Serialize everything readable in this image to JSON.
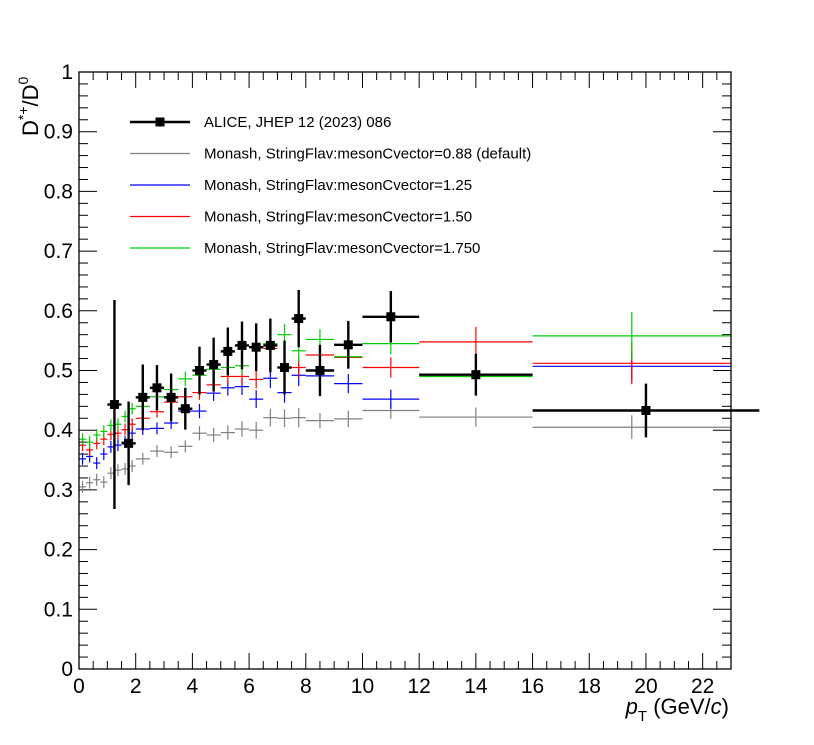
{
  "chart_data": {
    "type": "scatter",
    "title": "",
    "xlabel": {
      "italic": "p",
      "sub": "T",
      "unit_pre": " (GeV/",
      "unit_italic": "c",
      "unit_post": ")"
    },
    "ylabel": {
      "base": "D",
      "sup1": "*+",
      "mid": "/D",
      "sup2": "0"
    },
    "xlim": [
      0,
      23
    ],
    "ylim": [
      0,
      1
    ],
    "xticks": [
      0,
      2,
      4,
      6,
      8,
      10,
      12,
      14,
      16,
      18,
      20,
      22
    ],
    "xtick_labels": [
      "0",
      "2",
      "4",
      "6",
      "8",
      "10",
      "12",
      "14",
      "16",
      "18",
      "20",
      "22"
    ],
    "yticks": [
      0,
      0.1,
      0.2,
      0.3,
      0.4,
      0.5,
      0.6,
      0.7,
      0.8,
      0.9,
      1
    ],
    "ytick_labels": [
      "0",
      "0.1",
      "0.2",
      "0.3",
      "0.4",
      "0.5",
      "0.6",
      "0.7",
      "0.8",
      "0.9",
      "1"
    ],
    "legend_position": "top-left",
    "legend": [
      {
        "label": "ALICE, JHEP 12 (2023) 086",
        "color": "#000000",
        "style": "marker"
      },
      {
        "label": "Monash, StringFlav:mesonCvector=0.88 (default)",
        "color": "#808080",
        "style": "line"
      },
      {
        "label": "Monash, StringFlav:mesonCvector=1.25",
        "color": "#0000ff",
        "style": "line"
      },
      {
        "label": "Monash, StringFlav:mesonCvector=1.50",
        "color": "#ff0000",
        "style": "line"
      },
      {
        "label": "Monash, StringFlav:mesonCvector=1.750",
        "color": "#00cc00",
        "style": "line"
      }
    ],
    "series": [
      {
        "name": "ALICE, JHEP 12 (2023) 086",
        "color": "#000000",
        "kind": "data",
        "points": [
          {
            "x": 1.25,
            "xerr": 0.25,
            "y": 0.443,
            "yerr": 0.175
          },
          {
            "x": 1.75,
            "xerr": 0.25,
            "y": 0.378,
            "yerr": 0.07
          },
          {
            "x": 2.25,
            "xerr": 0.25,
            "y": 0.455,
            "yerr": 0.055
          },
          {
            "x": 2.75,
            "xerr": 0.25,
            "y": 0.471,
            "yerr": 0.038
          },
          {
            "x": 3.25,
            "xerr": 0.25,
            "y": 0.455,
            "yerr": 0.04
          },
          {
            "x": 3.75,
            "xerr": 0.25,
            "y": 0.436,
            "yerr": 0.035
          },
          {
            "x": 4.25,
            "xerr": 0.25,
            "y": 0.5,
            "yerr": 0.04
          },
          {
            "x": 4.75,
            "xerr": 0.25,
            "y": 0.51,
            "yerr": 0.045
          },
          {
            "x": 5.25,
            "xerr": 0.25,
            "y": 0.532,
            "yerr": 0.04
          },
          {
            "x": 5.75,
            "xerr": 0.25,
            "y": 0.542,
            "yerr": 0.04
          },
          {
            "x": 6.25,
            "xerr": 0.25,
            "y": 0.539,
            "yerr": 0.04
          },
          {
            "x": 6.75,
            "xerr": 0.25,
            "y": 0.542,
            "yerr": 0.045
          },
          {
            "x": 7.25,
            "xerr": 0.25,
            "y": 0.505,
            "yerr": 0.045
          },
          {
            "x": 7.75,
            "xerr": 0.25,
            "y": 0.587,
            "yerr": 0.048
          },
          {
            "x": 8.5,
            "xerr": 0.5,
            "y": 0.5,
            "yerr": 0.043
          },
          {
            "x": 9.5,
            "xerr": 0.5,
            "y": 0.543,
            "yerr": 0.04
          },
          {
            "x": 11,
            "xerr": 1,
            "y": 0.59,
            "yerr": 0.043
          },
          {
            "x": 14,
            "xerr": 2,
            "y": 0.493,
            "yerr": 0.035
          },
          {
            "x": 20,
            "xerr": 4,
            "y": 0.433,
            "yerr": 0.045
          }
        ]
      },
      {
        "name": "Monash, StringFlav:mesonCvector=0.88 (default)",
        "color": "#808080",
        "kind": "mc",
        "points": [
          {
            "x": 0.125,
            "xerr": 0.125,
            "y": 0.305,
            "yerr": 0.01
          },
          {
            "x": 0.375,
            "xerr": 0.125,
            "y": 0.312,
            "yerr": 0.01
          },
          {
            "x": 0.625,
            "xerr": 0.125,
            "y": 0.317,
            "yerr": 0.01
          },
          {
            "x": 0.875,
            "xerr": 0.125,
            "y": 0.313,
            "yerr": 0.01
          },
          {
            "x": 1.125,
            "xerr": 0.125,
            "y": 0.328,
            "yerr": 0.01
          },
          {
            "x": 1.375,
            "xerr": 0.125,
            "y": 0.333,
            "yerr": 0.01
          },
          {
            "x": 1.625,
            "xerr": 0.125,
            "y": 0.335,
            "yerr": 0.01
          },
          {
            "x": 1.875,
            "xerr": 0.125,
            "y": 0.34,
            "yerr": 0.01
          },
          {
            "x": 2.25,
            "xerr": 0.25,
            "y": 0.352,
            "yerr": 0.01
          },
          {
            "x": 2.75,
            "xerr": 0.25,
            "y": 0.365,
            "yerr": 0.01
          },
          {
            "x": 3.25,
            "xerr": 0.25,
            "y": 0.363,
            "yerr": 0.01
          },
          {
            "x": 3.75,
            "xerr": 0.25,
            "y": 0.373,
            "yerr": 0.01
          },
          {
            "x": 4.25,
            "xerr": 0.25,
            "y": 0.395,
            "yerr": 0.012
          },
          {
            "x": 4.75,
            "xerr": 0.25,
            "y": 0.392,
            "yerr": 0.012
          },
          {
            "x": 5.25,
            "xerr": 0.25,
            "y": 0.396,
            "yerr": 0.012
          },
          {
            "x": 5.75,
            "xerr": 0.25,
            "y": 0.402,
            "yerr": 0.013
          },
          {
            "x": 6.25,
            "xerr": 0.25,
            "y": 0.4,
            "yerr": 0.014
          },
          {
            "x": 6.75,
            "xerr": 0.25,
            "y": 0.421,
            "yerr": 0.015
          },
          {
            "x": 7.25,
            "xerr": 0.25,
            "y": 0.42,
            "yerr": 0.015
          },
          {
            "x": 7.75,
            "xerr": 0.25,
            "y": 0.421,
            "yerr": 0.016
          },
          {
            "x": 8.5,
            "xerr": 0.5,
            "y": 0.416,
            "yerr": 0.013
          },
          {
            "x": 9.5,
            "xerr": 0.5,
            "y": 0.419,
            "yerr": 0.014
          },
          {
            "x": 11,
            "xerr": 1,
            "y": 0.433,
            "yerr": 0.014
          },
          {
            "x": 14,
            "xerr": 2,
            "y": 0.422,
            "yerr": 0.016
          },
          {
            "x": 19.5,
            "xerr": 3.5,
            "y": 0.405,
            "yerr": 0.02
          }
        ]
      },
      {
        "name": "Monash, StringFlav:mesonCvector=1.25",
        "color": "#0000ff",
        "kind": "mc",
        "points": [
          {
            "x": 0.125,
            "xerr": 0.125,
            "y": 0.352,
            "yerr": 0.01
          },
          {
            "x": 0.375,
            "xerr": 0.125,
            "y": 0.356,
            "yerr": 0.01
          },
          {
            "x": 0.625,
            "xerr": 0.125,
            "y": 0.345,
            "yerr": 0.01
          },
          {
            "x": 0.875,
            "xerr": 0.125,
            "y": 0.36,
            "yerr": 0.01
          },
          {
            "x": 1.125,
            "xerr": 0.125,
            "y": 0.372,
            "yerr": 0.01
          },
          {
            "x": 1.375,
            "xerr": 0.125,
            "y": 0.375,
            "yerr": 0.01
          },
          {
            "x": 1.625,
            "xerr": 0.125,
            "y": 0.38,
            "yerr": 0.01
          },
          {
            "x": 1.875,
            "xerr": 0.125,
            "y": 0.395,
            "yerr": 0.01
          },
          {
            "x": 2.25,
            "xerr": 0.25,
            "y": 0.402,
            "yerr": 0.01
          },
          {
            "x": 2.75,
            "xerr": 0.25,
            "y": 0.403,
            "yerr": 0.01
          },
          {
            "x": 3.25,
            "xerr": 0.25,
            "y": 0.412,
            "yerr": 0.01
          },
          {
            "x": 3.75,
            "xerr": 0.25,
            "y": 0.432,
            "yerr": 0.012
          },
          {
            "x": 4.25,
            "xerr": 0.25,
            "y": 0.432,
            "yerr": 0.012
          },
          {
            "x": 4.75,
            "xerr": 0.25,
            "y": 0.462,
            "yerr": 0.013
          },
          {
            "x": 5.25,
            "xerr": 0.25,
            "y": 0.471,
            "yerr": 0.013
          },
          {
            "x": 5.75,
            "xerr": 0.25,
            "y": 0.473,
            "yerr": 0.014
          },
          {
            "x": 6.25,
            "xerr": 0.25,
            "y": 0.452,
            "yerr": 0.015
          },
          {
            "x": 6.75,
            "xerr": 0.25,
            "y": 0.487,
            "yerr": 0.016
          },
          {
            "x": 7.25,
            "xerr": 0.25,
            "y": 0.463,
            "yerr": 0.017
          },
          {
            "x": 7.75,
            "xerr": 0.25,
            "y": 0.492,
            "yerr": 0.018
          },
          {
            "x": 8.5,
            "xerr": 0.5,
            "y": 0.491,
            "yerr": 0.015
          },
          {
            "x": 9.5,
            "xerr": 0.5,
            "y": 0.478,
            "yerr": 0.016
          },
          {
            "x": 11,
            "xerr": 1,
            "y": 0.452,
            "yerr": 0.016
          },
          {
            "x": 14,
            "xerr": 2,
            "y": 0.494,
            "yerr": 0.018
          },
          {
            "x": 19.5,
            "xerr": 3.5,
            "y": 0.507,
            "yerr": 0.025
          }
        ]
      },
      {
        "name": "Monash, StringFlav:mesonCvector=1.50",
        "color": "#ff0000",
        "kind": "mc",
        "points": [
          {
            "x": 0.125,
            "xerr": 0.125,
            "y": 0.375,
            "yerr": 0.01
          },
          {
            "x": 0.375,
            "xerr": 0.125,
            "y": 0.367,
            "yerr": 0.01
          },
          {
            "x": 0.625,
            "xerr": 0.125,
            "y": 0.378,
            "yerr": 0.01
          },
          {
            "x": 0.875,
            "xerr": 0.125,
            "y": 0.385,
            "yerr": 0.01
          },
          {
            "x": 1.125,
            "xerr": 0.125,
            "y": 0.393,
            "yerr": 0.01
          },
          {
            "x": 1.375,
            "xerr": 0.125,
            "y": 0.395,
            "yerr": 0.01
          },
          {
            "x": 1.625,
            "xerr": 0.125,
            "y": 0.401,
            "yerr": 0.01
          },
          {
            "x": 1.875,
            "xerr": 0.125,
            "y": 0.41,
            "yerr": 0.01
          },
          {
            "x": 2.25,
            "xerr": 0.25,
            "y": 0.42,
            "yerr": 0.01
          },
          {
            "x": 2.75,
            "xerr": 0.25,
            "y": 0.431,
            "yerr": 0.01
          },
          {
            "x": 3.25,
            "xerr": 0.25,
            "y": 0.447,
            "yerr": 0.011
          },
          {
            "x": 3.75,
            "xerr": 0.25,
            "y": 0.456,
            "yerr": 0.012
          },
          {
            "x": 4.25,
            "xerr": 0.25,
            "y": 0.463,
            "yerr": 0.012
          },
          {
            "x": 4.75,
            "xerr": 0.25,
            "y": 0.476,
            "yerr": 0.013
          },
          {
            "x": 5.25,
            "xerr": 0.25,
            "y": 0.49,
            "yerr": 0.013
          },
          {
            "x": 5.75,
            "xerr": 0.25,
            "y": 0.49,
            "yerr": 0.014
          },
          {
            "x": 6.25,
            "xerr": 0.25,
            "y": 0.485,
            "yerr": 0.015
          },
          {
            "x": 6.75,
            "xerr": 0.25,
            "y": 0.537,
            "yerr": 0.016
          },
          {
            "x": 7.25,
            "xerr": 0.25,
            "y": 0.505,
            "yerr": 0.017
          },
          {
            "x": 7.75,
            "xerr": 0.25,
            "y": 0.505,
            "yerr": 0.018
          },
          {
            "x": 8.5,
            "xerr": 0.5,
            "y": 0.526,
            "yerr": 0.016
          },
          {
            "x": 9.5,
            "xerr": 0.5,
            "y": 0.522,
            "yerr": 0.016
          },
          {
            "x": 11,
            "xerr": 1,
            "y": 0.505,
            "yerr": 0.017
          },
          {
            "x": 14,
            "xerr": 2,
            "y": 0.548,
            "yerr": 0.025
          },
          {
            "x": 19.5,
            "xerr": 3.5,
            "y": 0.512,
            "yerr": 0.035
          }
        ]
      },
      {
        "name": "Monash, StringFlav:mesonCvector=1.750",
        "color": "#00cc00",
        "kind": "mc",
        "points": [
          {
            "x": 0.125,
            "xerr": 0.125,
            "y": 0.385,
            "yerr": 0.01
          },
          {
            "x": 0.375,
            "xerr": 0.125,
            "y": 0.38,
            "yerr": 0.01
          },
          {
            "x": 0.625,
            "xerr": 0.125,
            "y": 0.392,
            "yerr": 0.01
          },
          {
            "x": 0.875,
            "xerr": 0.125,
            "y": 0.398,
            "yerr": 0.01
          },
          {
            "x": 1.125,
            "xerr": 0.125,
            "y": 0.408,
            "yerr": 0.01
          },
          {
            "x": 1.375,
            "xerr": 0.125,
            "y": 0.41,
            "yerr": 0.01
          },
          {
            "x": 1.625,
            "xerr": 0.125,
            "y": 0.423,
            "yerr": 0.01
          },
          {
            "x": 1.875,
            "xerr": 0.125,
            "y": 0.436,
            "yerr": 0.01
          },
          {
            "x": 2.25,
            "xerr": 0.25,
            "y": 0.44,
            "yerr": 0.01
          },
          {
            "x": 2.75,
            "xerr": 0.25,
            "y": 0.456,
            "yerr": 0.011
          },
          {
            "x": 3.25,
            "xerr": 0.25,
            "y": 0.468,
            "yerr": 0.011
          },
          {
            "x": 3.75,
            "xerr": 0.25,
            "y": 0.486,
            "yerr": 0.012
          },
          {
            "x": 4.25,
            "xerr": 0.25,
            "y": 0.492,
            "yerr": 0.012
          },
          {
            "x": 4.75,
            "xerr": 0.25,
            "y": 0.502,
            "yerr": 0.013
          },
          {
            "x": 5.25,
            "xerr": 0.25,
            "y": 0.505,
            "yerr": 0.013
          },
          {
            "x": 5.75,
            "xerr": 0.25,
            "y": 0.508,
            "yerr": 0.014
          },
          {
            "x": 6.25,
            "xerr": 0.25,
            "y": 0.54,
            "yerr": 0.015
          },
          {
            "x": 6.75,
            "xerr": 0.25,
            "y": 0.545,
            "yerr": 0.016
          },
          {
            "x": 7.25,
            "xerr": 0.25,
            "y": 0.56,
            "yerr": 0.018
          },
          {
            "x": 7.75,
            "xerr": 0.25,
            "y": 0.533,
            "yerr": 0.018
          },
          {
            "x": 8.5,
            "xerr": 0.5,
            "y": 0.552,
            "yerr": 0.017
          },
          {
            "x": 9.5,
            "xerr": 0.5,
            "y": 0.523,
            "yerr": 0.017
          },
          {
            "x": 11,
            "xerr": 1,
            "y": 0.545,
            "yerr": 0.018
          },
          {
            "x": 14,
            "xerr": 2,
            "y": 0.49,
            "yerr": 0.03
          },
          {
            "x": 19.5,
            "xerr": 3.5,
            "y": 0.558,
            "yerr": 0.04
          }
        ]
      }
    ]
  }
}
